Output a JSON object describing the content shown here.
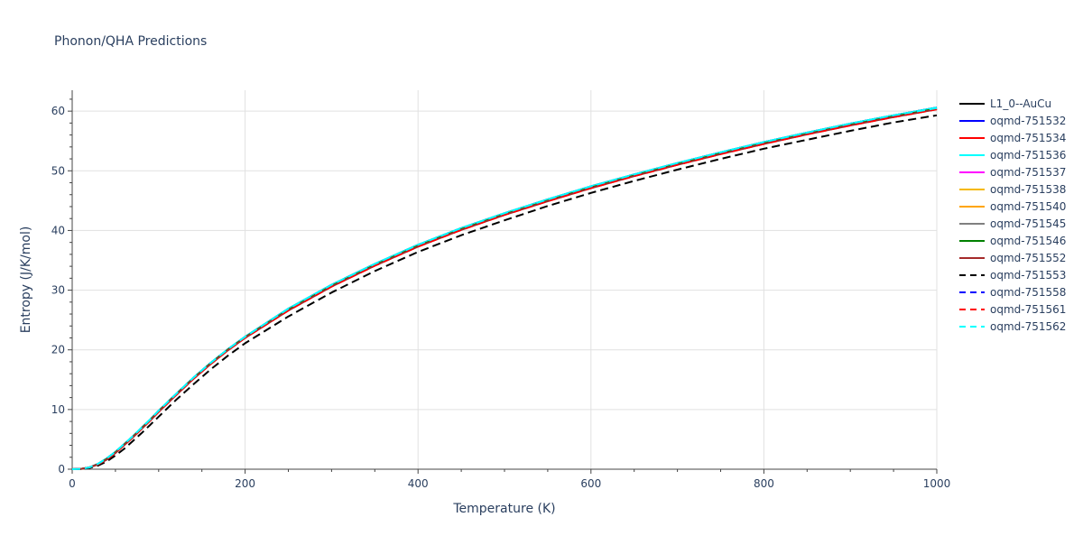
{
  "chart_data": {
    "type": "line",
    "title": "Phonon/QHA Predictions",
    "xlabel": "Temperature (K)",
    "ylabel": "Entropy (J/K/mol)",
    "xlim": [
      0,
      1000
    ],
    "ylim": [
      0,
      63.5
    ],
    "x_ticks": [
      0,
      200,
      400,
      600,
      800,
      1000
    ],
    "y_ticks": [
      0,
      10,
      20,
      30,
      40,
      50,
      60
    ],
    "x_tick_labels": [
      "0",
      "200",
      "400",
      "600",
      "800",
      "1000"
    ],
    "y_tick_labels": [
      "0",
      "10",
      "20",
      "30",
      "40",
      "50",
      "60"
    ],
    "grid": true,
    "legend_position": "right",
    "x": [
      0,
      10,
      20,
      30,
      40,
      50,
      60,
      70,
      80,
      90,
      100,
      120,
      140,
      160,
      180,
      200,
      250,
      300,
      350,
      400,
      450,
      500,
      550,
      600,
      650,
      700,
      750,
      800,
      850,
      900,
      950,
      1000
    ],
    "series": [
      {
        "name": "L1_0--AuCu",
        "color": "#000000",
        "dash": "solid",
        "values": [
          0,
          0.05,
          0.3,
          0.9,
          1.8,
          2.9,
          4.2,
          5.5,
          6.9,
          8.3,
          9.8,
          12.6,
          15.3,
          17.8,
          20.1,
          22.2,
          26.9,
          30.9,
          34.4,
          37.6,
          40.4,
          42.9,
          45.2,
          47.4,
          49.4,
          51.3,
          53.1,
          54.8,
          56.4,
          57.9,
          59.3,
          60.6
        ]
      },
      {
        "name": "oqmd-751532",
        "color": "#0000ff",
        "dash": "solid",
        "values": [
          0,
          0.05,
          0.3,
          0.9,
          1.8,
          2.9,
          4.2,
          5.5,
          6.9,
          8.3,
          9.8,
          12.6,
          15.3,
          17.8,
          20.1,
          22.2,
          26.9,
          30.9,
          34.4,
          37.6,
          40.4,
          42.9,
          45.2,
          47.4,
          49.4,
          51.3,
          53.1,
          54.8,
          56.4,
          57.9,
          59.3,
          60.6
        ]
      },
      {
        "name": "oqmd-751534",
        "color": "#ff0000",
        "dash": "solid",
        "values": [
          0,
          0.05,
          0.3,
          0.85,
          1.7,
          2.8,
          4.1,
          5.4,
          6.8,
          8.2,
          9.7,
          12.5,
          15.2,
          17.7,
          20.0,
          22.1,
          26.7,
          30.7,
          34.2,
          37.4,
          40.2,
          42.7,
          45.0,
          47.2,
          49.2,
          51.1,
          52.9,
          54.6,
          56.2,
          57.7,
          59.1,
          60.4
        ]
      },
      {
        "name": "oqmd-751536",
        "color": "#00ffff",
        "dash": "solid",
        "values": [
          0,
          0.05,
          0.3,
          0.9,
          1.8,
          2.9,
          4.2,
          5.5,
          6.9,
          8.3,
          9.8,
          12.6,
          15.3,
          17.8,
          20.1,
          22.2,
          26.9,
          30.9,
          34.4,
          37.6,
          40.4,
          42.9,
          45.2,
          47.4,
          49.4,
          51.3,
          53.1,
          54.8,
          56.4,
          57.9,
          59.3,
          60.6
        ]
      },
      {
        "name": "oqmd-751537",
        "color": "#ff00ff",
        "dash": "solid",
        "values": [
          0,
          0.05,
          0.3,
          0.85,
          1.7,
          2.8,
          4.1,
          5.4,
          6.8,
          8.2,
          9.7,
          12.5,
          15.2,
          17.7,
          20.0,
          22.1,
          26.7,
          30.7,
          34.2,
          37.4,
          40.2,
          42.7,
          45.0,
          47.2,
          49.2,
          51.1,
          52.9,
          54.6,
          56.2,
          57.7,
          59.1,
          60.4
        ]
      },
      {
        "name": "oqmd-751538",
        "color": "#f5b800",
        "dash": "solid",
        "values": [
          0,
          0.05,
          0.3,
          0.85,
          1.7,
          2.8,
          4.1,
          5.4,
          6.8,
          8.2,
          9.7,
          12.5,
          15.2,
          17.7,
          20.0,
          22.1,
          26.7,
          30.7,
          34.2,
          37.4,
          40.2,
          42.7,
          45.0,
          47.2,
          49.2,
          51.1,
          52.9,
          54.6,
          56.2,
          57.7,
          59.1,
          60.4
        ]
      },
      {
        "name": "oqmd-751540",
        "color": "#ffa500",
        "dash": "solid",
        "values": [
          0,
          0.05,
          0.3,
          0.85,
          1.7,
          2.8,
          4.1,
          5.4,
          6.8,
          8.2,
          9.7,
          12.5,
          15.2,
          17.7,
          20.0,
          22.1,
          26.7,
          30.7,
          34.2,
          37.4,
          40.2,
          42.7,
          45.0,
          47.2,
          49.2,
          51.1,
          52.9,
          54.6,
          56.2,
          57.7,
          59.1,
          60.4
        ]
      },
      {
        "name": "oqmd-751545",
        "color": "#808080",
        "dash": "solid",
        "values": [
          0,
          0.05,
          0.3,
          0.85,
          1.7,
          2.8,
          4.1,
          5.4,
          6.8,
          8.2,
          9.7,
          12.5,
          15.2,
          17.7,
          20.0,
          22.1,
          26.7,
          30.7,
          34.2,
          37.4,
          40.2,
          42.7,
          45.0,
          47.2,
          49.2,
          51.1,
          52.9,
          54.6,
          56.2,
          57.7,
          59.1,
          60.4
        ]
      },
      {
        "name": "oqmd-751546",
        "color": "#008000",
        "dash": "solid",
        "values": [
          0,
          0.05,
          0.3,
          0.85,
          1.7,
          2.8,
          4.1,
          5.4,
          6.8,
          8.2,
          9.7,
          12.5,
          15.2,
          17.7,
          20.0,
          22.1,
          26.7,
          30.7,
          34.2,
          37.4,
          40.2,
          42.7,
          45.0,
          47.2,
          49.2,
          51.1,
          52.9,
          54.6,
          56.2,
          57.7,
          59.1,
          60.4
        ]
      },
      {
        "name": "oqmd-751552",
        "color": "#a52a2a",
        "dash": "solid",
        "values": [
          0,
          0.05,
          0.3,
          0.8,
          1.6,
          2.7,
          4.0,
          5.3,
          6.7,
          8.1,
          9.6,
          12.4,
          15.1,
          17.6,
          19.9,
          22.0,
          26.6,
          30.6,
          34.1,
          37.3,
          40.1,
          42.6,
          44.9,
          47.1,
          49.1,
          51.0,
          52.8,
          54.5,
          56.1,
          57.6,
          59.0,
          60.3
        ]
      },
      {
        "name": "oqmd-751553",
        "color": "#000000",
        "dash": "dash",
        "values": [
          0,
          0.03,
          0.2,
          0.6,
          1.3,
          2.3,
          3.4,
          4.7,
          6.0,
          7.4,
          8.8,
          11.6,
          14.2,
          16.7,
          19.0,
          21.1,
          25.6,
          29.6,
          33.2,
          36.4,
          39.2,
          41.7,
          44.1,
          46.3,
          48.3,
          50.2,
          52.0,
          53.7,
          55.2,
          56.7,
          58.1,
          59.3
        ]
      },
      {
        "name": "oqmd-751558",
        "color": "#0000ff",
        "dash": "dash",
        "values": [
          0,
          0.05,
          0.3,
          0.85,
          1.7,
          2.8,
          4.1,
          5.4,
          6.8,
          8.2,
          9.7,
          12.5,
          15.2,
          17.7,
          20.0,
          22.1,
          26.7,
          30.7,
          34.2,
          37.4,
          40.2,
          42.7,
          45.0,
          47.2,
          49.2,
          51.1,
          52.9,
          54.6,
          56.2,
          57.7,
          59.1,
          60.4
        ]
      },
      {
        "name": "oqmd-751561",
        "color": "#ff0000",
        "dash": "dash",
        "values": [
          0,
          0.05,
          0.3,
          0.8,
          1.6,
          2.7,
          4.0,
          5.3,
          6.7,
          8.1,
          9.6,
          12.4,
          15.1,
          17.6,
          19.9,
          22.0,
          26.6,
          30.6,
          34.1,
          37.3,
          40.1,
          42.6,
          44.9,
          47.1,
          49.1,
          51.0,
          52.8,
          54.5,
          56.1,
          57.6,
          59.0,
          60.3
        ]
      },
      {
        "name": "oqmd-751562",
        "color": "#00ffff",
        "dash": "dash",
        "values": [
          0,
          0.05,
          0.3,
          0.9,
          1.8,
          2.9,
          4.2,
          5.5,
          6.9,
          8.3,
          9.8,
          12.6,
          15.3,
          17.8,
          20.1,
          22.2,
          26.9,
          30.9,
          34.4,
          37.6,
          40.4,
          42.9,
          45.2,
          47.4,
          49.4,
          51.3,
          53.1,
          54.8,
          56.4,
          57.9,
          59.3,
          60.5
        ]
      }
    ]
  }
}
